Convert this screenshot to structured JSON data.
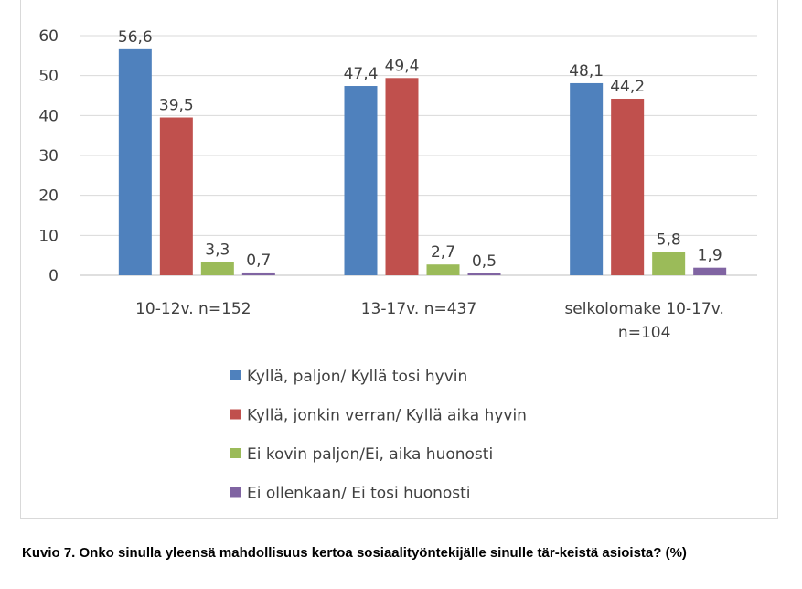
{
  "chart_data": {
    "type": "bar",
    "categories": [
      [
        "10-12v. n=152"
      ],
      [
        "13-17v. n=437"
      ],
      [
        "selkolomake 10-17v.",
        "n=104"
      ]
    ],
    "series": [
      {
        "name": "Kyllä, paljon/ Kyllä tosi hyvin",
        "color": "#4F81BD",
        "values": [
          56.6,
          47.4,
          48.1
        ],
        "labels": [
          "56,6",
          "47,4",
          "48,1"
        ]
      },
      {
        "name": "Kyllä, jonkin verran/ Kyllä aika hyvin",
        "color": "#C0504D",
        "values": [
          39.5,
          49.4,
          44.2
        ],
        "labels": [
          "39,5",
          "49,4",
          "44,2"
        ]
      },
      {
        "name": "Ei kovin paljon/Ei, aika huonosti",
        "color": "#9BBB59",
        "values": [
          3.3,
          2.7,
          5.8
        ],
        "labels": [
          "3,3",
          "2,7",
          "5,8"
        ]
      },
      {
        "name": "Ei ollenkaan/ Ei tosi huonosti",
        "color": "#8064A2",
        "values": [
          0.7,
          0.5,
          1.9
        ],
        "labels": [
          "0,7",
          "0,5",
          "1,9"
        ]
      }
    ],
    "yticks": [
      0,
      10,
      20,
      30,
      40,
      50,
      60
    ],
    "ylim": [
      0,
      60
    ],
    "grid": true,
    "legend": "bottom",
    "title": "",
    "xlabel": "",
    "ylabel": ""
  },
  "caption": "Kuvio 7. Onko sinulla yleensä mahdollisuus kertoa sosiaalityöntekijälle sinulle tär-keistä asioista? (%)"
}
